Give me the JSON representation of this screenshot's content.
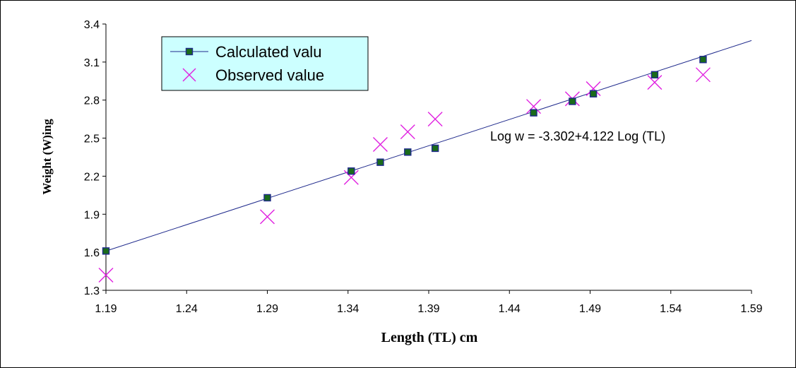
{
  "chart_data": {
    "type": "scatter",
    "title": "",
    "xlabel": "Length (TL) cm",
    "ylabel": "Weight (W)ing",
    "xlim": [
      1.19,
      1.59
    ],
    "ylim": [
      1.3,
      3.4
    ],
    "x_ticks": [
      "1.19",
      "1.24",
      "1.29",
      "1.34",
      "1.39",
      "1.44",
      "1.49",
      "1.54",
      "1.59"
    ],
    "y_ticks": [
      "1.3",
      "1.6",
      "1.9",
      "2.2",
      "2.5",
      "2.8",
      "3.1",
      "3.4"
    ],
    "grid": false,
    "legend_position": "top-left",
    "series": [
      {
        "name": "Calculated valu",
        "marker": "square",
        "color": "#1a6b1a",
        "border": "#1f2a8c",
        "x": [
          1.19,
          1.29,
          1.342,
          1.36,
          1.377,
          1.394,
          1.455,
          1.479,
          1.492,
          1.53,
          1.56
        ],
        "y": [
          1.61,
          2.03,
          2.24,
          2.31,
          2.39,
          2.42,
          2.7,
          2.79,
          2.85,
          3.0,
          3.12
        ]
      },
      {
        "name": "Observed value",
        "marker": "x",
        "color": "#e020e0",
        "x": [
          1.19,
          1.29,
          1.342,
          1.36,
          1.377,
          1.394,
          1.455,
          1.479,
          1.492,
          1.53,
          1.56
        ],
        "y": [
          1.42,
          1.88,
          2.19,
          2.45,
          2.55,
          2.65,
          2.75,
          2.81,
          2.89,
          2.94,
          3.0
        ]
      }
    ],
    "trendline": {
      "color": "#1f2a8c",
      "x": [
        1.19,
        1.59
      ],
      "y": [
        1.61,
        3.27
      ]
    },
    "annotation": "Log w = -3.302+4.122 Log (TL)"
  }
}
